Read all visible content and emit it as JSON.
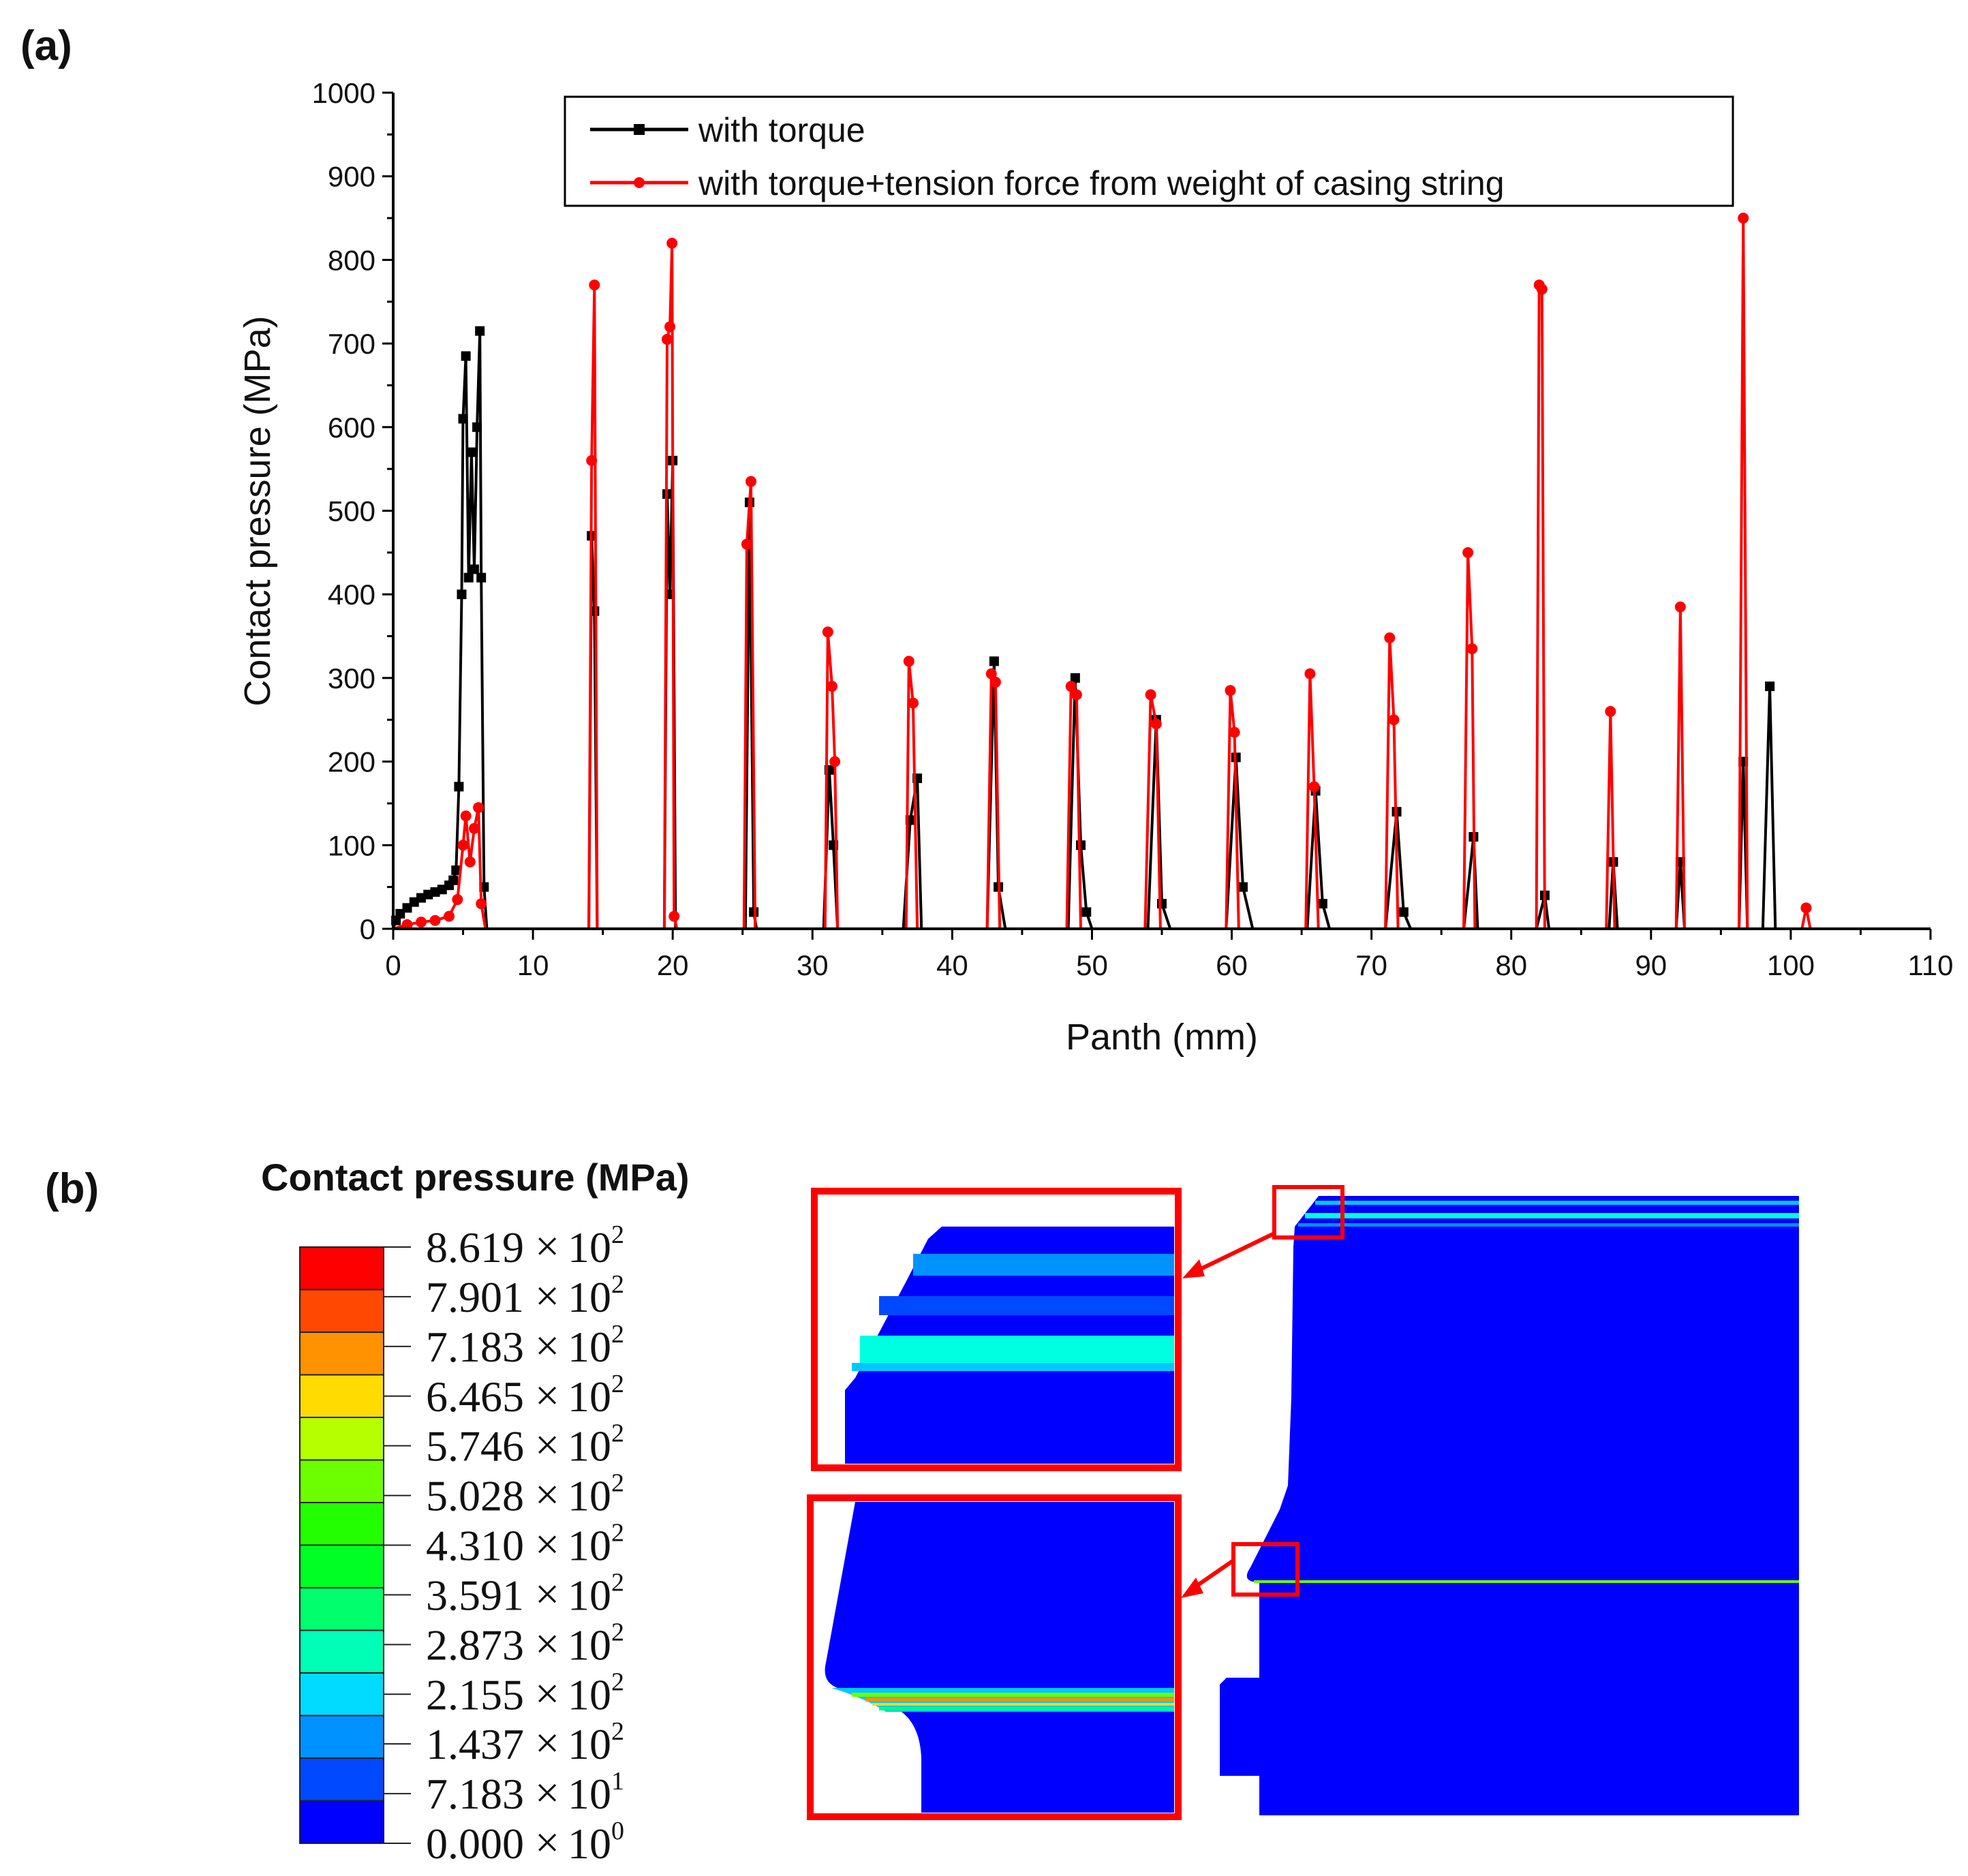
{
  "panel_a_label": "(a)",
  "panel_b_label": "(b)",
  "colors": {
    "series_torque": "#000000",
    "series_tension": "#ff0000",
    "highlight": "#ff0000",
    "mesh_base": "#0000ff"
  },
  "chart_data": {
    "type": "line",
    "title": "",
    "xlabel": "Panth (mm)",
    "ylabel": "Contact pressure (MPa)",
    "xlim": [
      0,
      110
    ],
    "ylim": [
      0,
      1000
    ],
    "xticks": [
      0,
      10,
      20,
      30,
      40,
      50,
      60,
      70,
      80,
      90,
      100,
      110
    ],
    "yticks": [
      0,
      100,
      200,
      300,
      400,
      500,
      600,
      700,
      800,
      900,
      1000
    ],
    "grid": false,
    "legend_position": "top-right",
    "series": [
      {
        "name": "with torque",
        "color": "#000000",
        "marker": "square",
        "points": [
          [
            0,
            0
          ],
          [
            0.2,
            10
          ],
          [
            0.5,
            18
          ],
          [
            1,
            25
          ],
          [
            1.5,
            32
          ],
          [
            2,
            37
          ],
          [
            2.5,
            41
          ],
          [
            3,
            44
          ],
          [
            3.5,
            47
          ],
          [
            4,
            52
          ],
          [
            4.3,
            58
          ],
          [
            4.5,
            70
          ],
          [
            4.7,
            170
          ],
          [
            4.9,
            400
          ],
          [
            5,
            610
          ],
          [
            5.2,
            685
          ],
          [
            5.4,
            420
          ],
          [
            5.6,
            570
          ],
          [
            5.8,
            430
          ],
          [
            6,
            600
          ],
          [
            6.2,
            715
          ],
          [
            6.3,
            420
          ],
          [
            6.5,
            50
          ],
          [
            6.7,
            0
          ],
          [
            14,
            0
          ],
          [
            14.2,
            470
          ],
          [
            14.4,
            380
          ],
          [
            14.6,
            0
          ],
          [
            19.4,
            0
          ],
          [
            19.6,
            520
          ],
          [
            19.8,
            400
          ],
          [
            20,
            560
          ],
          [
            20.2,
            0
          ],
          [
            25.2,
            0
          ],
          [
            25.5,
            510
          ],
          [
            25.8,
            20
          ],
          [
            26,
            0
          ],
          [
            30.8,
            0
          ],
          [
            31.2,
            190
          ],
          [
            31.5,
            100
          ],
          [
            31.8,
            0
          ],
          [
            36.5,
            0
          ],
          [
            37,
            130
          ],
          [
            37.5,
            180
          ],
          [
            37.8,
            0
          ],
          [
            42.5,
            0
          ],
          [
            43,
            320
          ],
          [
            43.3,
            50
          ],
          [
            43.8,
            0
          ],
          [
            48.3,
            0
          ],
          [
            48.8,
            300
          ],
          [
            49.2,
            100
          ],
          [
            49.6,
            20
          ],
          [
            50,
            0
          ],
          [
            54,
            0
          ],
          [
            54.6,
            250
          ],
          [
            55,
            30
          ],
          [
            55.6,
            0
          ],
          [
            59.6,
            0
          ],
          [
            60.3,
            205
          ],
          [
            60.8,
            50
          ],
          [
            61.5,
            0
          ],
          [
            65.4,
            0
          ],
          [
            66,
            165
          ],
          [
            66.5,
            30
          ],
          [
            67,
            0
          ],
          [
            71,
            0
          ],
          [
            71.8,
            140
          ],
          [
            72.3,
            20
          ],
          [
            72.8,
            0
          ],
          [
            76.6,
            0
          ],
          [
            77.3,
            110
          ],
          [
            77.6,
            0
          ],
          [
            81.8,
            0
          ],
          [
            82.4,
            40
          ],
          [
            82.7,
            0
          ],
          [
            87,
            0
          ],
          [
            87.3,
            80
          ],
          [
            87.6,
            0
          ],
          [
            91.8,
            0
          ],
          [
            92.1,
            80
          ],
          [
            92.4,
            0
          ],
          [
            96.3,
            0
          ],
          [
            96.6,
            200
          ],
          [
            96.9,
            0
          ],
          [
            98,
            0
          ],
          [
            98.5,
            290
          ],
          [
            98.9,
            0
          ],
          [
            107.2,
            0
          ]
        ]
      },
      {
        "name": "with torque+tension force from weight of casing string",
        "color": "#ff0000",
        "marker": "circle",
        "points": [
          [
            0,
            0
          ],
          [
            1,
            5
          ],
          [
            2,
            8
          ],
          [
            3,
            10
          ],
          [
            4,
            15
          ],
          [
            4.6,
            35
          ],
          [
            5,
            100
          ],
          [
            5.2,
            135
          ],
          [
            5.5,
            80
          ],
          [
            5.8,
            120
          ],
          [
            6.1,
            145
          ],
          [
            6.3,
            30
          ],
          [
            6.6,
            0
          ],
          [
            14,
            0
          ],
          [
            14.2,
            560
          ],
          [
            14.4,
            770
          ],
          [
            14.6,
            0
          ],
          [
            19.4,
            0
          ],
          [
            19.6,
            705
          ],
          [
            19.8,
            720
          ],
          [
            19.95,
            820
          ],
          [
            20.1,
            15
          ],
          [
            20.3,
            0
          ],
          [
            25.1,
            0
          ],
          [
            25.3,
            460
          ],
          [
            25.6,
            535
          ],
          [
            25.9,
            0
          ],
          [
            30.9,
            0
          ],
          [
            31.1,
            355
          ],
          [
            31.4,
            290
          ],
          [
            31.6,
            200
          ],
          [
            31.8,
            0
          ],
          [
            36.7,
            0
          ],
          [
            36.9,
            320
          ],
          [
            37.2,
            270
          ],
          [
            37.5,
            0
          ],
          [
            42.5,
            0
          ],
          [
            42.8,
            305
          ],
          [
            43.1,
            295
          ],
          [
            43.4,
            0
          ],
          [
            48.2,
            0
          ],
          [
            48.5,
            290
          ],
          [
            48.9,
            280
          ],
          [
            49.2,
            0
          ],
          [
            53.8,
            0
          ],
          [
            54.2,
            280
          ],
          [
            54.6,
            245
          ],
          [
            54.9,
            0
          ],
          [
            59.6,
            0
          ],
          [
            59.9,
            285
          ],
          [
            60.2,
            235
          ],
          [
            60.5,
            0
          ],
          [
            65.3,
            0
          ],
          [
            65.6,
            305
          ],
          [
            65.9,
            170
          ],
          [
            66.2,
            0
          ],
          [
            71,
            0
          ],
          [
            71.3,
            348
          ],
          [
            71.6,
            250
          ],
          [
            71.9,
            0
          ],
          [
            76.6,
            0
          ],
          [
            76.9,
            450
          ],
          [
            77.2,
            335
          ],
          [
            77.4,
            0
          ],
          [
            81.8,
            0
          ],
          [
            82,
            770
          ],
          [
            82.2,
            765
          ],
          [
            82.4,
            0
          ],
          [
            86.8,
            0
          ],
          [
            87.1,
            260
          ],
          [
            87.4,
            0
          ],
          [
            91.8,
            0
          ],
          [
            92.1,
            385
          ],
          [
            92.4,
            0
          ],
          [
            96.3,
            0
          ],
          [
            96.6,
            850
          ],
          [
            96.9,
            0
          ],
          [
            100.8,
            0
          ],
          [
            101.1,
            25
          ],
          [
            101.4,
            0
          ],
          [
            107.2,
            0
          ]
        ]
      }
    ]
  },
  "colorbar": {
    "title": "Contact pressure (MPa)",
    "colors": [
      "#0000ff",
      "#0049ff",
      "#0092ff",
      "#00dbff",
      "#00ffb6",
      "#00ff6d",
      "#00ff24",
      "#24ff00",
      "#6dff00",
      "#b6ff00",
      "#ffdb00",
      "#ff9200",
      "#ff4900",
      "#ff0000"
    ],
    "labels": [
      {
        "mant": "8.619",
        "exp": "2"
      },
      {
        "mant": "7.901",
        "exp": "2"
      },
      {
        "mant": "7.183",
        "exp": "2"
      },
      {
        "mant": "6.465",
        "exp": "2"
      },
      {
        "mant": "5.746",
        "exp": "2"
      },
      {
        "mant": "5.028",
        "exp": "2"
      },
      {
        "mant": "4.310",
        "exp": "2"
      },
      {
        "mant": "3.591",
        "exp": "2"
      },
      {
        "mant": "2.873",
        "exp": "2"
      },
      {
        "mant": "2.155",
        "exp": "2"
      },
      {
        "mant": "1.437",
        "exp": "2"
      },
      {
        "mant": "7.183",
        "exp": "1"
      },
      {
        "mant": "0.000",
        "exp": "0"
      }
    ]
  }
}
